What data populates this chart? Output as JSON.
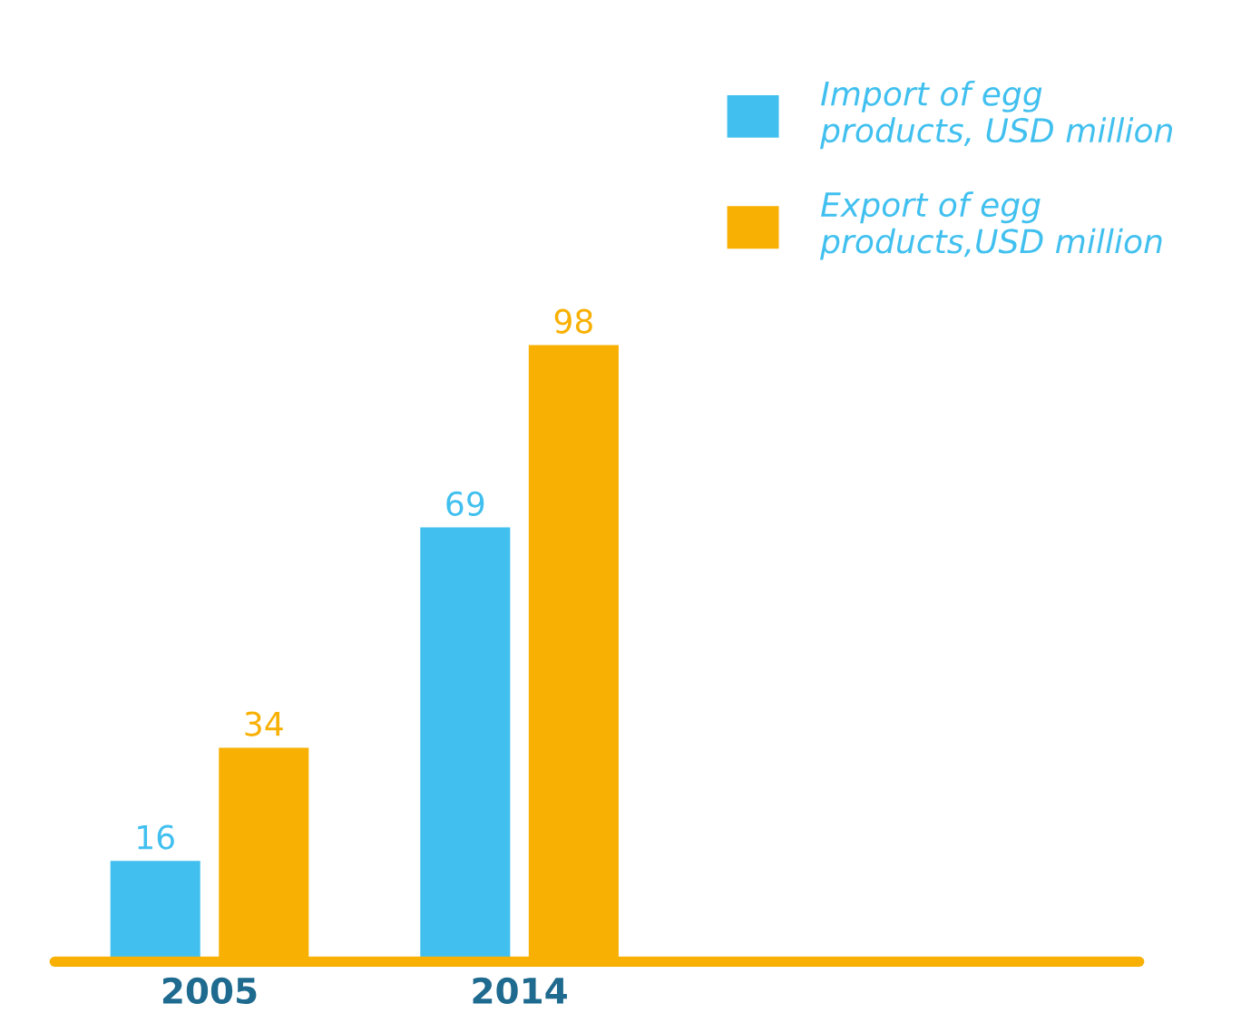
{
  "chart_data": {
    "type": "bar",
    "categories": [
      "2005",
      "2014"
    ],
    "series": [
      {
        "name": "Import of egg products, USD million",
        "color": "#41c0ef",
        "values": [
          16,
          69
        ]
      },
      {
        "name": "Export of egg products,USD million",
        "color": "#f8b003",
        "values": [
          34,
          98
        ]
      }
    ],
    "data_labels": true,
    "legend": "top right",
    "tick_labels": "x"
  }
}
